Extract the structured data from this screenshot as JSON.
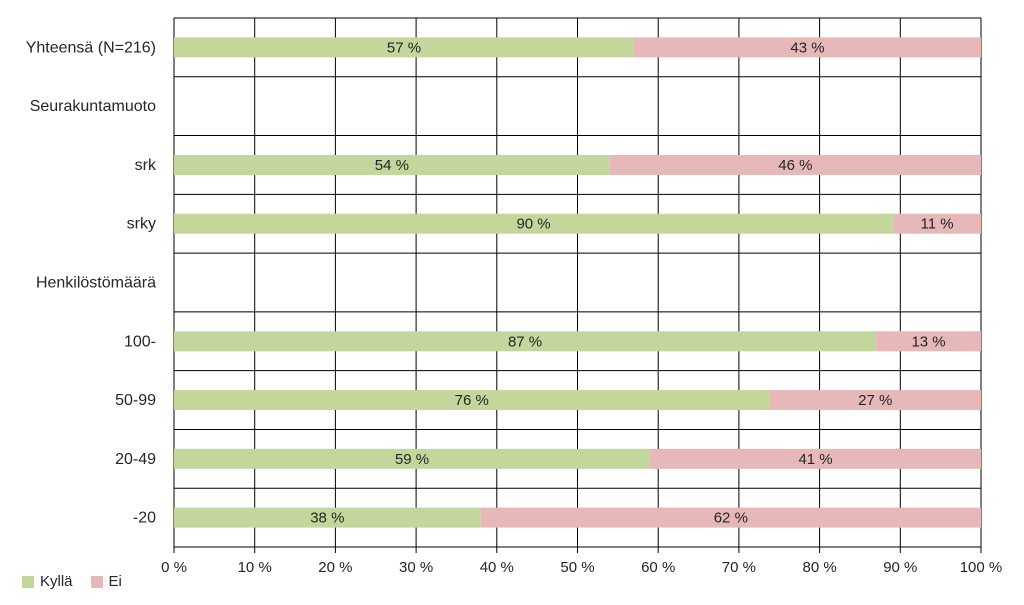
{
  "chart_data": {
    "type": "bar",
    "orientation": "horizontal",
    "stacked": true,
    "categories": [
      "Yhteensä (N=216)",
      "Seurakuntamuoto",
      "srk",
      "srky",
      "Henkilöstömäärä",
      "100-",
      "50-99",
      "20-49",
      "-20"
    ],
    "series": [
      {
        "name": "Kyllä",
        "color": "#c3d69b",
        "values": [
          57,
          null,
          54,
          90,
          null,
          87,
          76,
          59,
          38
        ],
        "labels": [
          "57 %",
          "",
          "54 %",
          "90 %",
          "",
          "87 %",
          "76 %",
          "59 %",
          "38 %"
        ]
      },
      {
        "name": "Ei",
        "color": "#e6b9b8",
        "values": [
          43,
          null,
          46,
          11,
          null,
          13,
          27,
          41,
          62
        ],
        "labels": [
          "43 %",
          "",
          "46 %",
          "11 %",
          "",
          "13 %",
          "27 %",
          "41 %",
          "62 %"
        ]
      }
    ],
    "xlim": [
      0,
      100
    ],
    "xticks": [
      "0 %",
      "10 %",
      "20 %",
      "30 %",
      "40 %",
      "50 %",
      "60 %",
      "70 %",
      "80 %",
      "90 %",
      "100 %"
    ],
    "grid": true,
    "legend_position": "bottom-left",
    "title": "",
    "xlabel": "",
    "ylabel": ""
  }
}
